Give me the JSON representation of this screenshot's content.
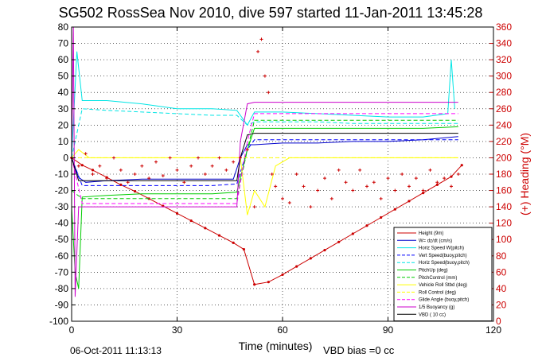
{
  "footer": {
    "date": "06-Oct-2011 11:13:13",
    "vbd_bias": "VBD bias =0 cc"
  },
  "chart_data": {
    "type": "line",
    "title": "SG502 RossSea Nov 2010, dive 597 started 11-Jan-2011 13:45:28",
    "xlabel": "Time (minutes)",
    "ylabel": "",
    "y2label": "(+) Heading (°M)",
    "xlim": [
      0,
      120
    ],
    "ylim": [
      -100,
      80
    ],
    "y2lim": [
      0,
      360
    ],
    "xticks": [
      0,
      30,
      60,
      90,
      120
    ],
    "yticks": [
      -100,
      -90,
      -80,
      -70,
      -60,
      -50,
      -40,
      -30,
      -20,
      -10,
      0,
      10,
      20,
      30,
      40,
      50,
      60,
      70,
      80
    ],
    "y2ticks": [
      0,
      20,
      40,
      60,
      80,
      100,
      120,
      140,
      160,
      180,
      200,
      220,
      240,
      260,
      280,
      300,
      320,
      340,
      360
    ],
    "grid": true,
    "legend_position": "lower-right",
    "series": [
      {
        "name": "Height (9m)",
        "color": "#cc0000",
        "style": "solid",
        "marker": "dot",
        "x": [
          0,
          3,
          6,
          10,
          14,
          18,
          22,
          26,
          30,
          34,
          38,
          42,
          46,
          49,
          52,
          56,
          60,
          64,
          68,
          72,
          76,
          80,
          84,
          88,
          92,
          96,
          100,
          104,
          108,
          111
        ],
        "y": [
          0,
          -4.5,
          -7.5,
          -12,
          -16.5,
          -20.5,
          -25,
          -29.5,
          -34,
          -38.5,
          -43,
          -47.5,
          -52,
          -56,
          -77.5,
          -76,
          -71.5,
          -66.5,
          -61.5,
          -56.5,
          -51.5,
          -46.5,
          -41.5,
          -36.5,
          -31.5,
          -26.5,
          -21.5,
          -16.5,
          -11.5,
          -4.5
        ]
      },
      {
        "name": "W= dz/dt (cm/s)",
        "color": "#0000cc",
        "style": "solid",
        "x": [
          0,
          2,
          4,
          10,
          20,
          30,
          40,
          46,
          48,
          50,
          52,
          60,
          70,
          80,
          90,
          100,
          110
        ],
        "y": [
          0,
          -12,
          -15,
          -14,
          -13,
          -13,
          -13,
          -13,
          0,
          8,
          8,
          9,
          9,
          10,
          10,
          11,
          13
        ]
      },
      {
        "name": "Horiz Speed W(pitch)",
        "color": "#00e5e5",
        "style": "solid",
        "x": [
          0,
          1.5,
          3,
          10,
          20,
          30,
          40,
          47,
          50,
          52,
          60,
          70,
          80,
          90,
          100,
          107,
          108,
          109
        ],
        "y": [
          0,
          65,
          35,
          35,
          33,
          30,
          30,
          29,
          20,
          28,
          28,
          27,
          26,
          25,
          25,
          27,
          60,
          30
        ]
      },
      {
        "name": "Vert Speed(buoy,pitch)",
        "color": "#0000ff",
        "style": "dashed",
        "x": [
          0,
          3,
          10,
          20,
          30,
          40,
          47,
          50,
          52,
          60,
          70,
          80,
          90,
          100,
          110
        ],
        "y": [
          0,
          -17,
          -17,
          -17,
          -17,
          -17,
          -16,
          5,
          11,
          11,
          11,
          11,
          11,
          11,
          11
        ]
      },
      {
        "name": "Horiz Speed(buoy,pitch)",
        "color": "#00e5e5",
        "style": "dashed",
        "x": [
          0,
          3,
          10,
          20,
          30,
          40,
          47,
          50,
          52,
          60,
          70,
          80,
          90,
          100,
          110
        ],
        "y": [
          0,
          30,
          29,
          28,
          27,
          26,
          26,
          20,
          22,
          22,
          22,
          21,
          21,
          21,
          21
        ]
      },
      {
        "name": "PitchUp (deg)",
        "color": "#00cc00",
        "style": "solid",
        "x": [
          0,
          1,
          2,
          3,
          10,
          20,
          30,
          40,
          47,
          50,
          52,
          60,
          70,
          80,
          90,
          100,
          110
        ],
        "y": [
          -30,
          -70,
          -80,
          -24,
          -23,
          -22,
          -22,
          -22,
          -21,
          5,
          18,
          18,
          18,
          18,
          18,
          18,
          19
        ]
      },
      {
        "name": "PitchControl (mm)",
        "color": "#00cc00",
        "style": "dashed",
        "x": [
          0,
          3,
          10,
          20,
          30,
          40,
          47,
          50,
          52,
          60,
          70,
          80,
          90,
          100,
          110
        ],
        "y": [
          -20,
          -25,
          -25,
          -25,
          -25,
          -25,
          -25,
          5,
          23,
          23,
          23,
          23,
          23,
          23,
          23
        ]
      },
      {
        "name": "Vehicle Roll Stbd (deg)",
        "color": "#ffff00",
        "style": "solid",
        "x": [
          0,
          2,
          5,
          10,
          15,
          20,
          25,
          30,
          35,
          40,
          45,
          48,
          50,
          52,
          55,
          58,
          62,
          70,
          78,
          86,
          94,
          102,
          110
        ],
        "y": [
          0,
          5,
          0,
          0,
          0,
          0,
          0,
          0,
          0,
          0,
          0,
          0,
          -35,
          -20,
          -30,
          -5,
          0,
          0,
          0,
          0,
          0,
          0,
          0
        ]
      },
      {
        "name": "Roll Control (deg)",
        "color": "#ffff00",
        "style": "dashed",
        "x": [
          0,
          10,
          20,
          30,
          40,
          50,
          60,
          70,
          80,
          90,
          100,
          110
        ],
        "y": [
          0,
          0,
          0,
          0,
          0,
          0,
          0,
          0,
          0,
          0,
          0,
          0
        ]
      },
      {
        "name": "Glide Angle (buoy,pitch)",
        "color": "#ff00ff",
        "style": "dashed",
        "x": [
          0,
          3,
          10,
          20,
          30,
          40,
          47,
          50,
          52,
          60,
          70,
          80,
          90,
          100,
          110
        ],
        "y": [
          0,
          -28,
          -28,
          -28,
          -28,
          -28,
          -28,
          10,
          27,
          27,
          27,
          27,
          27,
          27,
          27
        ]
      },
      {
        "name": "1/5 Buoyancy (g)",
        "color": "#cc00cc",
        "style": "solid",
        "x": [
          0,
          0.5,
          1,
          2,
          3,
          10,
          20,
          30,
          40,
          47,
          48,
          50,
          52,
          60,
          70,
          80,
          90,
          100,
          110
        ],
        "y": [
          0,
          80,
          -85,
          -30,
          -30,
          -30,
          -30,
          -30,
          -30,
          -30,
          10,
          33,
          34,
          34,
          34,
          34,
          34,
          34,
          34
        ]
      },
      {
        "name": "VBD ( 10 cc)",
        "color": "#000000",
        "style": "solid",
        "x": [
          0,
          2,
          3,
          10,
          20,
          30,
          40,
          47,
          48,
          50,
          52,
          60,
          70,
          80,
          90,
          100,
          110
        ],
        "y": [
          0,
          -14,
          -14,
          -14,
          -14,
          -14,
          -14,
          -14,
          0,
          14,
          15,
          15,
          15,
          15,
          15,
          15,
          15
        ]
      }
    ],
    "heading_series": {
      "axis": "right",
      "color": "#cc0000",
      "marker": "plus",
      "x": [
        0,
        2,
        4,
        6,
        8,
        10,
        12,
        14,
        16,
        18,
        20,
        22,
        24,
        26,
        28,
        30,
        32,
        34,
        36,
        38,
        40,
        42,
        44,
        46,
        48,
        50,
        52,
        53,
        54,
        55,
        56,
        57,
        58,
        60,
        62,
        64,
        66,
        68,
        70,
        72,
        74,
        76,
        78,
        80,
        82,
        84,
        86,
        88,
        90,
        92,
        94,
        96,
        98,
        100,
        102,
        104,
        106,
        108,
        110
      ],
      "y": [
        200,
        190,
        205,
        180,
        190,
        175,
        200,
        185,
        170,
        180,
        190,
        175,
        195,
        178,
        200,
        185,
        170,
        190,
        200,
        180,
        190,
        200,
        185,
        195,
        200,
        210,
        140,
        330,
        345,
        300,
        280,
        180,
        165,
        150,
        145,
        180,
        165,
        140,
        160,
        175,
        150,
        185,
        170,
        160,
        185,
        165,
        170,
        150,
        175,
        160,
        180,
        165,
        175,
        160,
        185,
        170,
        175,
        165,
        180
      ]
    }
  }
}
